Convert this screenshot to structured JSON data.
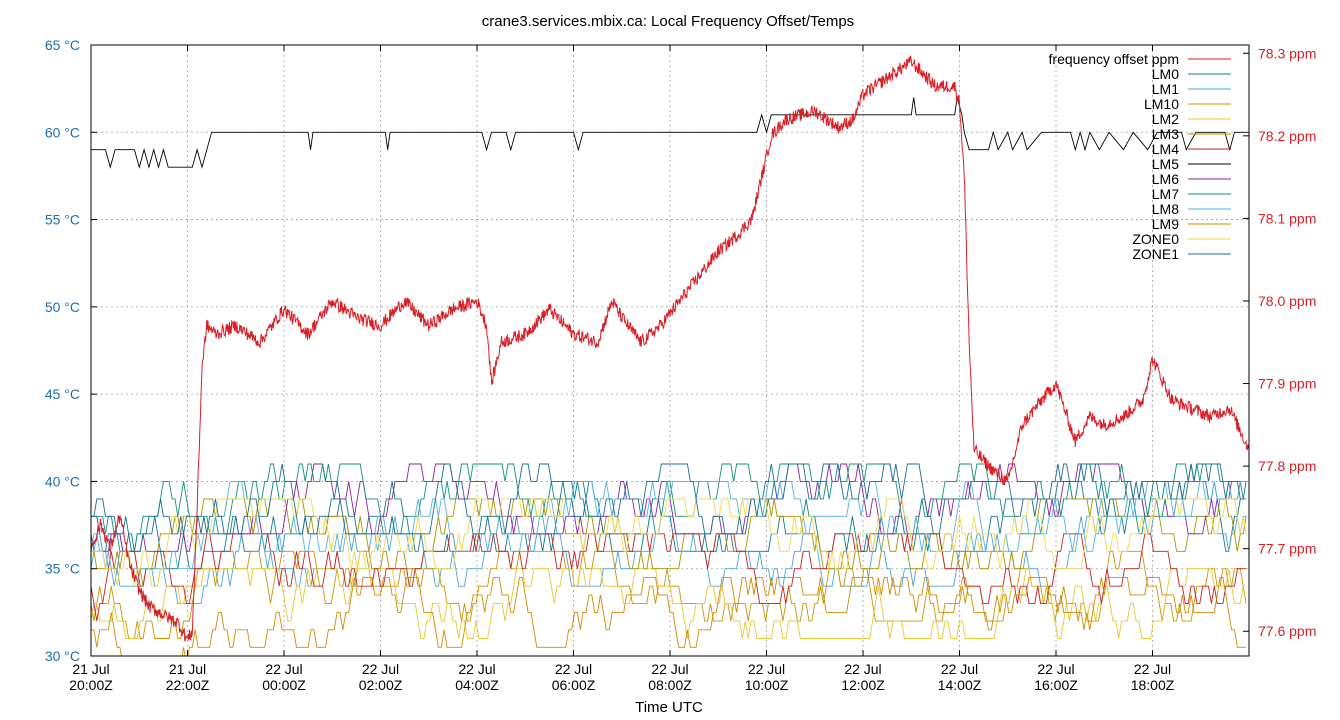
{
  "chart_data": {
    "type": "line",
    "title": "crane3.services.mbix.ca: Local Frequency Offset/Temps",
    "xlabel": "Time UTC",
    "x_range_hours": [
      20.0,
      44.0
    ],
    "x_ticks": [
      {
        "hour": 20,
        "line1": "21 Jul",
        "line2": "20:00Z"
      },
      {
        "hour": 22,
        "line1": "21 Jul",
        "line2": "22:00Z"
      },
      {
        "hour": 24,
        "line1": "22 Jul",
        "line2": "00:00Z"
      },
      {
        "hour": 26,
        "line1": "22 Jul",
        "line2": "02:00Z"
      },
      {
        "hour": 28,
        "line1": "22 Jul",
        "line2": "04:00Z"
      },
      {
        "hour": 30,
        "line1": "22 Jul",
        "line2": "06:00Z"
      },
      {
        "hour": 32,
        "line1": "22 Jul",
        "line2": "08:00Z"
      },
      {
        "hour": 34,
        "line1": "22 Jul",
        "line2": "10:00Z"
      },
      {
        "hour": 36,
        "line1": "22 Jul",
        "line2": "12:00Z"
      },
      {
        "hour": 38,
        "line1": "22 Jul",
        "line2": "14:00Z"
      },
      {
        "hour": 40,
        "line1": "22 Jul",
        "line2": "16:00Z"
      },
      {
        "hour": 42,
        "line1": "22 Jul",
        "line2": "18:00Z"
      }
    ],
    "y_left": {
      "range": [
        30,
        65
      ],
      "ticks": [
        30,
        35,
        40,
        45,
        50,
        55,
        60,
        65
      ],
      "unit": "°C",
      "color": "#1f6fb0"
    },
    "y_right": {
      "range": [
        77.57,
        78.31
      ],
      "ticks": [
        77.6,
        77.7,
        77.8,
        77.9,
        78.0,
        78.1,
        78.2,
        78.3
      ],
      "unit": "ppm",
      "color": "#d81f26"
    },
    "grid": true,
    "legend_position": "top-right",
    "frequency_offset": {
      "name": "frequency offset ppm",
      "color": "#d81f26",
      "axis": "right",
      "noise": 0.008,
      "points": [
        [
          20.0,
          77.7
        ],
        [
          20.2,
          77.73
        ],
        [
          20.4,
          77.7
        ],
        [
          20.6,
          77.74
        ],
        [
          20.8,
          77.68
        ],
        [
          21.0,
          77.65
        ],
        [
          21.2,
          77.63
        ],
        [
          21.5,
          77.62
        ],
        [
          21.8,
          77.61
        ],
        [
          22.0,
          77.59
        ],
        [
          22.1,
          77.6
        ],
        [
          22.2,
          77.75
        ],
        [
          22.3,
          77.92
        ],
        [
          22.4,
          77.97
        ],
        [
          22.6,
          77.96
        ],
        [
          23.0,
          77.97
        ],
        [
          23.5,
          77.95
        ],
        [
          24.0,
          77.99
        ],
        [
          24.5,
          77.96
        ],
        [
          25.0,
          78.0
        ],
        [
          25.5,
          77.98
        ],
        [
          26.0,
          77.97
        ],
        [
          26.5,
          78.0
        ],
        [
          27.0,
          77.97
        ],
        [
          27.5,
          77.99
        ],
        [
          28.0,
          78.0
        ],
        [
          28.2,
          77.97
        ],
        [
          28.3,
          77.9
        ],
        [
          28.5,
          77.95
        ],
        [
          29.0,
          77.96
        ],
        [
          29.5,
          77.99
        ],
        [
          30.0,
          77.96
        ],
        [
          30.5,
          77.95
        ],
        [
          30.8,
          78.0
        ],
        [
          31.0,
          77.98
        ],
        [
          31.4,
          77.95
        ],
        [
          31.8,
          77.97
        ],
        [
          32.2,
          78.0
        ],
        [
          32.6,
          78.03
        ],
        [
          33.0,
          78.06
        ],
        [
          33.4,
          78.08
        ],
        [
          33.7,
          78.1
        ],
        [
          33.9,
          78.15
        ],
        [
          34.1,
          78.2
        ],
        [
          34.4,
          78.22
        ],
        [
          35.0,
          78.23
        ],
        [
          35.5,
          78.21
        ],
        [
          35.8,
          78.22
        ],
        [
          36.0,
          78.25
        ],
        [
          36.5,
          78.27
        ],
        [
          37.0,
          78.29
        ],
        [
          37.5,
          78.26
        ],
        [
          37.9,
          78.26
        ],
        [
          38.0,
          78.24
        ],
        [
          38.1,
          78.15
        ],
        [
          38.2,
          77.95
        ],
        [
          38.3,
          77.82
        ],
        [
          38.6,
          77.8
        ],
        [
          39.0,
          77.78
        ],
        [
          39.3,
          77.85
        ],
        [
          39.7,
          77.88
        ],
        [
          40.0,
          77.9
        ],
        [
          40.4,
          77.83
        ],
        [
          40.7,
          77.86
        ],
        [
          41.0,
          77.85
        ],
        [
          41.4,
          77.86
        ],
        [
          41.8,
          77.88
        ],
        [
          42.0,
          77.93
        ],
        [
          42.4,
          77.88
        ],
        [
          42.8,
          77.87
        ],
        [
          43.2,
          77.86
        ],
        [
          43.6,
          77.87
        ],
        [
          44.0,
          77.82
        ]
      ]
    },
    "temperature_series": [
      {
        "name": "LM0",
        "color": "#0e7a8a",
        "axis": "left",
        "base": 38.0,
        "amp": 1.0
      },
      {
        "name": "LM1",
        "color": "#4aa3d8",
        "axis": "left",
        "base": 36.0,
        "amp": 1.0
      },
      {
        "name": "LM10",
        "color": "#c79400",
        "axis": "left",
        "base": 34.0,
        "amp": 1.0
      },
      {
        "name": "LM2",
        "color": "#e6c830",
        "axis": "left",
        "base": 33.0,
        "amp": 1.0
      },
      {
        "name": "LM3",
        "color": "#a89100",
        "axis": "left",
        "base": 37.0,
        "amp": 1.0
      },
      {
        "name": "LM4",
        "color": "#c42020",
        "axis": "left",
        "base": 35.0,
        "amp": 1.0
      },
      {
        "name": "LM5",
        "color": "#000000",
        "axis": "left",
        "step": true,
        "points": [
          [
            20.0,
            59
          ],
          [
            20.3,
            59
          ],
          [
            20.4,
            58
          ],
          [
            20.5,
            59
          ],
          [
            20.9,
            59
          ],
          [
            21.0,
            58
          ],
          [
            21.1,
            59
          ],
          [
            21.2,
            58
          ],
          [
            21.3,
            59
          ],
          [
            21.4,
            58
          ],
          [
            21.5,
            59
          ],
          [
            21.6,
            58
          ],
          [
            22.1,
            58
          ],
          [
            22.2,
            59
          ],
          [
            22.3,
            58
          ],
          [
            22.4,
            59
          ],
          [
            22.5,
            60
          ],
          [
            24.5,
            60
          ],
          [
            24.55,
            59
          ],
          [
            24.6,
            60
          ],
          [
            26.1,
            60
          ],
          [
            26.15,
            59
          ],
          [
            26.2,
            60
          ],
          [
            28.1,
            60
          ],
          [
            28.2,
            59
          ],
          [
            28.3,
            60
          ],
          [
            28.6,
            60
          ],
          [
            28.7,
            59
          ],
          [
            28.8,
            60
          ],
          [
            30.0,
            60
          ],
          [
            30.1,
            59
          ],
          [
            30.2,
            60
          ],
          [
            33.8,
            60
          ],
          [
            33.9,
            61
          ],
          [
            34.0,
            60
          ],
          [
            34.1,
            61
          ],
          [
            37.0,
            61
          ],
          [
            37.05,
            62
          ],
          [
            37.1,
            61
          ],
          [
            37.9,
            61
          ],
          [
            37.95,
            62
          ],
          [
            38.05,
            61
          ],
          [
            38.1,
            60
          ],
          [
            38.2,
            59
          ],
          [
            38.6,
            59
          ],
          [
            38.7,
            60
          ],
          [
            38.8,
            59
          ],
          [
            39.0,
            60
          ],
          [
            39.1,
            59
          ],
          [
            39.3,
            60
          ],
          [
            39.4,
            59
          ],
          [
            39.7,
            60
          ],
          [
            40.3,
            60
          ],
          [
            40.4,
            59
          ],
          [
            40.5,
            60
          ],
          [
            40.6,
            59
          ],
          [
            40.7,
            60
          ],
          [
            40.9,
            59
          ],
          [
            41.1,
            60
          ],
          [
            41.4,
            59
          ],
          [
            41.6,
            60
          ],
          [
            41.9,
            59
          ],
          [
            42.1,
            60
          ],
          [
            42.6,
            60
          ],
          [
            42.7,
            59
          ],
          [
            42.9,
            60
          ],
          [
            43.5,
            60
          ],
          [
            43.6,
            59
          ],
          [
            43.7,
            60
          ],
          [
            44.0,
            60
          ]
        ]
      },
      {
        "name": "LM6",
        "color": "#8a1fa6",
        "axis": "left",
        "base": 39.0,
        "amp": 1.0
      },
      {
        "name": "LM7",
        "color": "#138f7c",
        "axis": "left",
        "base": 39.0,
        "amp": 1.0
      },
      {
        "name": "LM8",
        "color": "#52b2e0",
        "axis": "left",
        "base": 38.0,
        "amp": 1.0
      },
      {
        "name": "LM9",
        "color": "#d08a00",
        "axis": "left",
        "base": 32.5,
        "amp": 1.0
      },
      {
        "name": "ZONE0",
        "color": "#f0d84a",
        "axis": "left",
        "base": 37.0,
        "amp": 1.0
      },
      {
        "name": "ZONE1",
        "color": "#1b6c95",
        "axis": "left",
        "base": 39.0,
        "amp": 1.0
      }
    ]
  }
}
